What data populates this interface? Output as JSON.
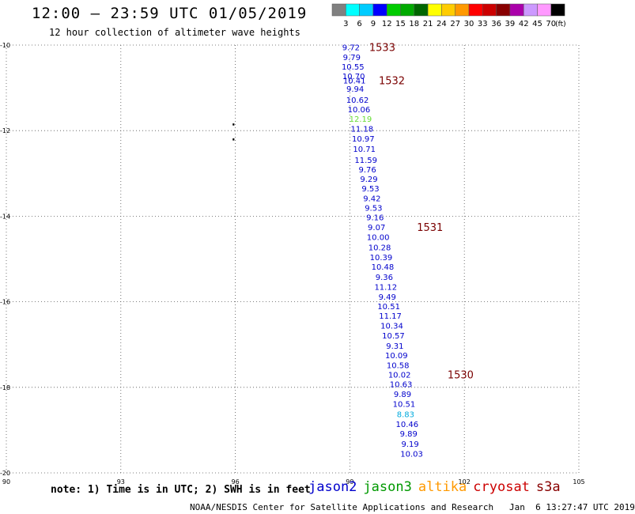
{
  "header": {
    "title": "12:00 – 23:59 UTC 01/05/2019",
    "subtitle": "12 hour collection of altimeter wave heights"
  },
  "legend": {
    "unit": "(ft)",
    "colors": [
      "#808080",
      "#00ffff",
      "#00ccff",
      "#0000ff",
      "#00cc00",
      "#00aa00",
      "#006600",
      "#ffff00",
      "#ffcc00",
      "#ff9900",
      "#ff0000",
      "#cc0000",
      "#880000",
      "#aa00aa",
      "#cc99ff",
      "#ff99ff",
      "#000000"
    ],
    "labels": [
      "3",
      "6",
      "9",
      "12",
      "15",
      "18",
      "21",
      "24",
      "27",
      "30",
      "33",
      "36",
      "39",
      "42",
      "45",
      "70"
    ]
  },
  "note": "note: 1) Time is in UTC; 2) SWH is in feet",
  "satellites": [
    {
      "name": "jason2",
      "color": "#0000cc"
    },
    {
      "name": "jason3",
      "color": "#009900"
    },
    {
      "name": "altika",
      "color": "#ff9900"
    },
    {
      "name": "cryosat",
      "color": "#cc0000"
    },
    {
      "name": "s3a",
      "color": "#880000"
    }
  ],
  "credit": "NOAA/NESDIS Center for Satellite Applications and Research   Jan  6 13:27:47 UTC 2019",
  "chart_data": {
    "type": "scatter",
    "xlim": [
      90,
      105
    ],
    "ylim": [
      -20,
      -10
    ],
    "x_ticks": [
      "90",
      "93",
      "96",
      "99",
      "102",
      "105"
    ],
    "y_ticks": [
      "-10",
      "-12",
      "-14",
      "-16",
      "-18",
      "-20"
    ],
    "grid": true,
    "points": [
      {
        "lon": 99.03,
        "lat": -10.05,
        "value": "9.72",
        "color": "#0000cc"
      },
      {
        "lon": 99.05,
        "lat": -10.28,
        "value": "9.79",
        "color": "#0000cc"
      },
      {
        "lon": 99.08,
        "lat": -10.5,
        "value": "10.55",
        "color": "#0000cc"
      },
      {
        "lon": 99.1,
        "lat": -10.72,
        "value": "10.70",
        "color": "#0000cc"
      },
      {
        "lon": 99.12,
        "lat": -10.82,
        "value": "10.41",
        "color": "#0000cc"
      },
      {
        "lon": 99.14,
        "lat": -11.02,
        "value": "9.94",
        "color": "#0000cc"
      },
      {
        "lon": 99.2,
        "lat": -11.28,
        "value": "10.62",
        "color": "#0000cc"
      },
      {
        "lon": 99.24,
        "lat": -11.5,
        "value": "10.06",
        "color": "#0000cc"
      },
      {
        "lon": 99.28,
        "lat": -11.72,
        "value": "12.19",
        "color": "#66dd33"
      },
      {
        "lon": 99.32,
        "lat": -11.95,
        "value": "11.18",
        "color": "#0000cc"
      },
      {
        "lon": 99.35,
        "lat": -12.18,
        "value": "10.97",
        "color": "#0000cc"
      },
      {
        "lon": 99.38,
        "lat": -12.42,
        "value": "10.71",
        "color": "#0000cc"
      },
      {
        "lon": 99.42,
        "lat": -12.68,
        "value": "11.59",
        "color": "#0000cc"
      },
      {
        "lon": 99.46,
        "lat": -12.9,
        "value": "9.76",
        "color": "#0000cc"
      },
      {
        "lon": 99.5,
        "lat": -13.12,
        "value": "9.29",
        "color": "#0000cc"
      },
      {
        "lon": 99.54,
        "lat": -13.35,
        "value": "9.53",
        "color": "#0000cc"
      },
      {
        "lon": 99.58,
        "lat": -13.58,
        "value": "9.42",
        "color": "#0000cc"
      },
      {
        "lon": 99.62,
        "lat": -13.8,
        "value": "9.53",
        "color": "#0000cc"
      },
      {
        "lon": 99.66,
        "lat": -14.02,
        "value": "9.16",
        "color": "#0000cc"
      },
      {
        "lon": 99.7,
        "lat": -14.25,
        "value": "9.07",
        "color": "#0000cc"
      },
      {
        "lon": 99.74,
        "lat": -14.48,
        "value": "10.00",
        "color": "#0000cc"
      },
      {
        "lon": 99.78,
        "lat": -14.72,
        "value": "10.28",
        "color": "#0000cc"
      },
      {
        "lon": 99.82,
        "lat": -14.95,
        "value": "10.39",
        "color": "#0000cc"
      },
      {
        "lon": 99.86,
        "lat": -15.18,
        "value": "10.48",
        "color": "#0000cc"
      },
      {
        "lon": 99.9,
        "lat": -15.42,
        "value": "9.36",
        "color": "#0000cc"
      },
      {
        "lon": 99.94,
        "lat": -15.65,
        "value": "11.12",
        "color": "#0000cc"
      },
      {
        "lon": 99.98,
        "lat": -15.88,
        "value": "9.49",
        "color": "#0000cc"
      },
      {
        "lon": 100.02,
        "lat": -16.1,
        "value": "10.51",
        "color": "#0000cc"
      },
      {
        "lon": 100.06,
        "lat": -16.32,
        "value": "11.17",
        "color": "#0000cc"
      },
      {
        "lon": 100.1,
        "lat": -16.55,
        "value": "10.34",
        "color": "#0000cc"
      },
      {
        "lon": 100.14,
        "lat": -16.78,
        "value": "10.57",
        "color": "#0000cc"
      },
      {
        "lon": 100.18,
        "lat": -17.02,
        "value": "9.31",
        "color": "#0000cc"
      },
      {
        "lon": 100.22,
        "lat": -17.25,
        "value": "10.09",
        "color": "#0000cc"
      },
      {
        "lon": 100.26,
        "lat": -17.48,
        "value": "10.58",
        "color": "#0000cc"
      },
      {
        "lon": 100.3,
        "lat": -17.7,
        "value": "10.02",
        "color": "#0000cc"
      },
      {
        "lon": 100.34,
        "lat": -17.92,
        "value": "10.63",
        "color": "#0000cc"
      },
      {
        "lon": 100.38,
        "lat": -18.15,
        "value": "9.89",
        "color": "#0000cc"
      },
      {
        "lon": 100.42,
        "lat": -18.38,
        "value": "10.51",
        "color": "#0000cc"
      },
      {
        "lon": 100.46,
        "lat": -18.62,
        "value": "8.83",
        "color": "#00aadd"
      },
      {
        "lon": 100.5,
        "lat": -18.85,
        "value": "10.46",
        "color": "#0000cc"
      },
      {
        "lon": 100.54,
        "lat": -19.08,
        "value": "9.89",
        "color": "#0000cc"
      },
      {
        "lon": 100.58,
        "lat": -19.32,
        "value": "9.19",
        "color": "#0000cc"
      },
      {
        "lon": 100.62,
        "lat": -19.55,
        "value": "10.03",
        "color": "#0000cc"
      }
    ],
    "time_labels": [
      {
        "lon": 99.85,
        "lat": -10.05,
        "text": "1533"
      },
      {
        "lon": 100.1,
        "lat": -10.82,
        "text": "1532"
      },
      {
        "lon": 101.1,
        "lat": -14.25,
        "text": "1531"
      },
      {
        "lon": 101.9,
        "lat": -17.7,
        "text": "1530"
      }
    ],
    "marks": [
      {
        "lon": 95.95,
        "lat": -11.85
      },
      {
        "lon": 95.95,
        "lat": -12.2
      }
    ]
  }
}
